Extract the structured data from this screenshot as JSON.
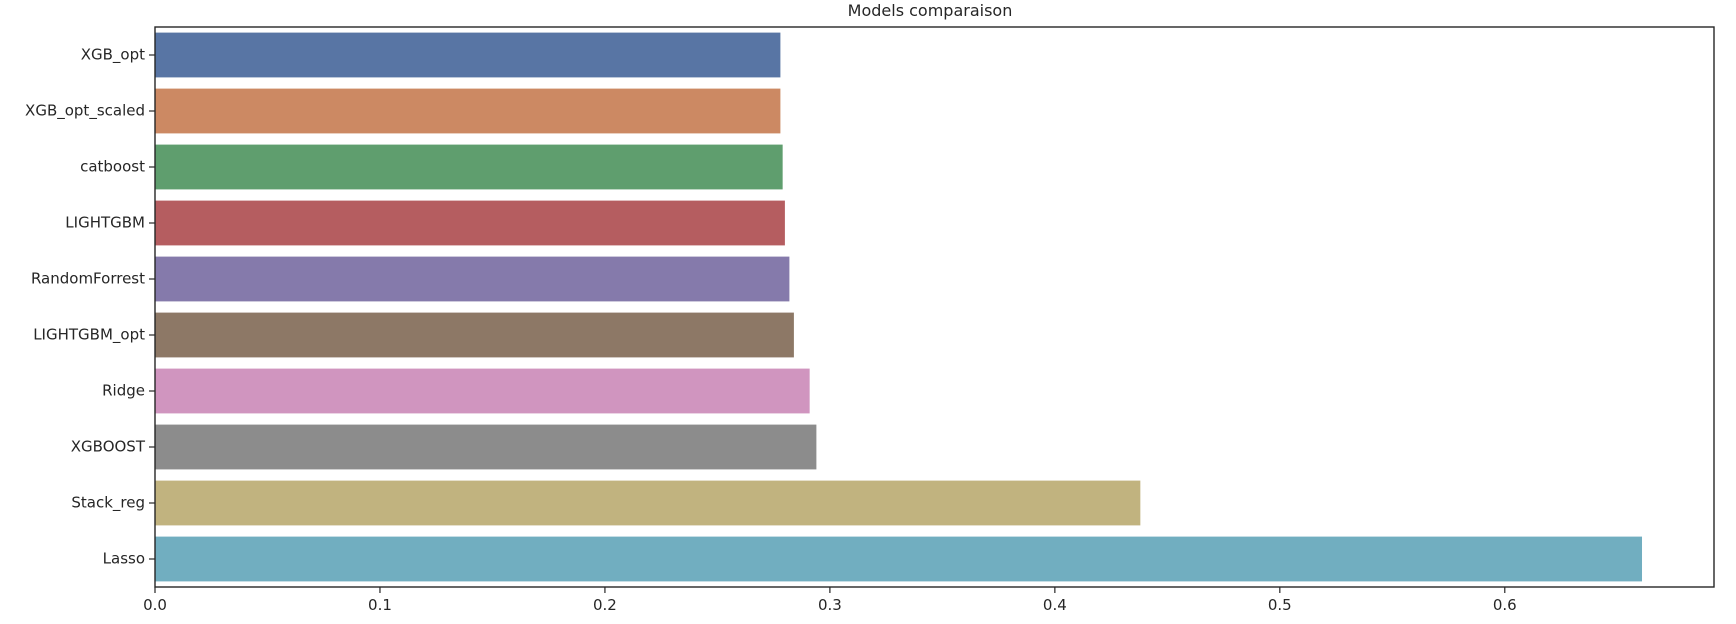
{
  "chart_data": {
    "type": "bar",
    "orientation": "horizontal",
    "title": "Models comparaison",
    "xlabel": "",
    "ylabel": "",
    "categories": [
      "XGB_opt",
      "XGB_opt_scaled",
      "catboost",
      "LIGHTGBM",
      "RandomForrest",
      "LIGHTGBM_opt",
      "Ridge",
      "XGBOOST",
      "Stack_reg",
      "Lasso"
    ],
    "values": [
      0.278,
      0.278,
      0.279,
      0.28,
      0.282,
      0.284,
      0.291,
      0.294,
      0.438,
      0.661
    ],
    "colors": [
      "#5875a4",
      "#cc8963",
      "#5f9e6e",
      "#b55d60",
      "#857aab",
      "#8d7866",
      "#d095bf",
      "#8c8c8c",
      "#c1b37f",
      "#71aec0"
    ],
    "xlim": [
      0,
      0.693
    ],
    "xticks": [
      0.0,
      0.1,
      0.2,
      0.3,
      0.4,
      0.5,
      0.6
    ],
    "xtick_labels": [
      "0.0",
      "0.1",
      "0.2",
      "0.3",
      "0.4",
      "0.5",
      "0.6"
    ],
    "grid": false,
    "legend": "none"
  }
}
